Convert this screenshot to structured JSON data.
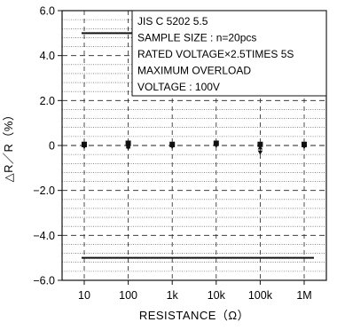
{
  "chart_data": {
    "type": "scatter",
    "xlabel": "RESISTANCE（Ω）",
    "ylabel": "△R／R（%）",
    "x_scale": "log",
    "x_tick_labels": [
      "10",
      "100",
      "1k",
      "10k",
      "100k",
      "1M"
    ],
    "x_tick_values": [
      10,
      100,
      1000,
      10000,
      100000,
      1000000
    ],
    "ylim": [
      -6.0,
      6.0
    ],
    "y_tick_labels": [
      "6.0",
      "4.0",
      "2.0",
      "0",
      "−2.0",
      "−4.0",
      "−6.0"
    ],
    "y_tick_values": [
      6,
      4,
      2,
      0,
      -2,
      -4,
      -6
    ],
    "grid": true,
    "limit_lines": [
      5.0,
      -5.0
    ],
    "series": [
      {
        "marker": "square",
        "x": [
          10,
          100,
          1000,
          10000,
          100000,
          1000000
        ],
        "y": [
          0.05,
          0.1,
          0.05,
          0.1,
          0.05,
          0.05
        ]
      },
      {
        "marker": "triangle",
        "x": [
          10,
          100,
          1000,
          10000,
          100000,
          1000000
        ],
        "y": [
          0.0,
          -0.05,
          0.0,
          0.05,
          -0.1,
          0.0
        ]
      },
      {
        "marker": "triangle-down",
        "x": [
          10,
          100,
          1000,
          10000,
          100000,
          1000000
        ],
        "y": [
          -0.05,
          -0.1,
          -0.05,
          0.0,
          -0.3,
          -0.05
        ]
      }
    ],
    "legend": {
      "placement": "top-right",
      "lines": [
        "JIS C 5202 5.5",
        "SAMPLE SIZE : n=20pcs",
        "RATED VOLTAGE×2.5TIMES 5S",
        "MAXIMUM OVERLOAD",
        "VOLTAGE : 100V"
      ]
    }
  }
}
